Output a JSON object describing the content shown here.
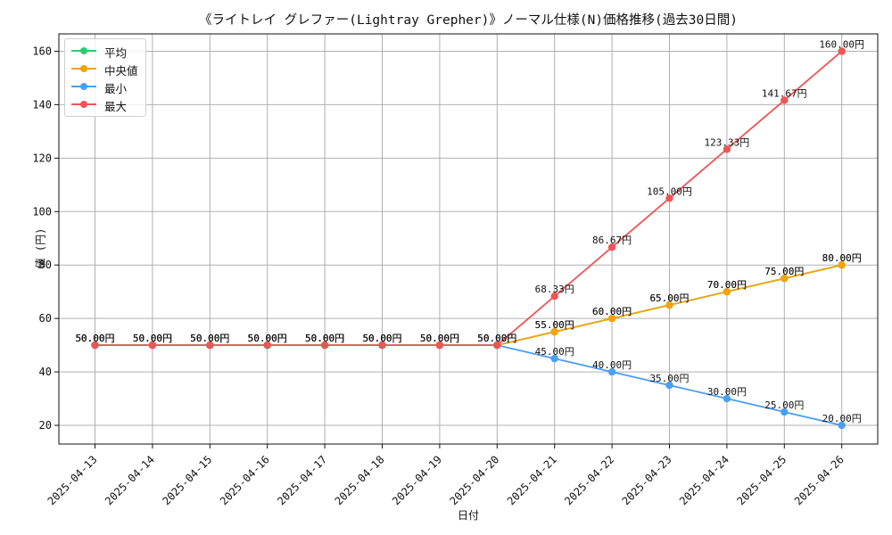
{
  "chart_data": {
    "type": "line",
    "title": "《ライトレイ グレファー(Lightray Grepher)》ノーマル仕様(N)価格推移(過去30日間)",
    "xlabel": "日付",
    "ylabel": "値 (円)",
    "categories": [
      "2025-04-13",
      "2025-04-14",
      "2025-04-15",
      "2025-04-16",
      "2025-04-17",
      "2025-04-18",
      "2025-04-19",
      "2025-04-20",
      "2025-04-21",
      "2025-04-22",
      "2025-04-23",
      "2025-04-24",
      "2025-04-25",
      "2025-04-26"
    ],
    "ylim": [
      13,
      166.5
    ],
    "yticks": [
      20,
      40,
      60,
      80,
      100,
      120,
      140,
      160
    ],
    "grid": true,
    "legend_position": "top-left",
    "value_suffix": "円",
    "series": [
      {
        "name": "平均",
        "color": "#2ecc71",
        "values": [
          50,
          50,
          50,
          50,
          50,
          50,
          50,
          50,
          55,
          60,
          65,
          70,
          75,
          80
        ]
      },
      {
        "name": "中央値",
        "color": "#f5a30a",
        "values": [
          50,
          50,
          50,
          50,
          50,
          50,
          50,
          50,
          55,
          60,
          65,
          70,
          75,
          80
        ]
      },
      {
        "name": "最小",
        "color": "#4a9ef5",
        "values": [
          50,
          50,
          50,
          50,
          50,
          50,
          50,
          50,
          45,
          40,
          35,
          30,
          25,
          20
        ]
      },
      {
        "name": "最大",
        "color": "#f05454",
        "values": [
          50,
          50,
          50,
          50,
          50,
          50,
          50,
          50,
          68.33,
          86.67,
          105,
          123.33,
          141.67,
          160
        ]
      }
    ]
  }
}
